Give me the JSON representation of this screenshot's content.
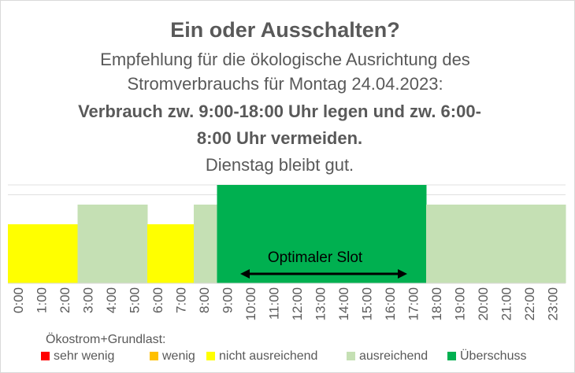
{
  "chart_data": {
    "type": "bar",
    "title": "Ein oder Ausschalten?",
    "subtitle": [
      "Empfehlung für die ökologische Ausrichtung des",
      "Stromverbrauchs für Montag 24.04.2023:"
    ],
    "recommendation": [
      "Verbrauch zw. 9:00-18:00 Uhr legen und zw. 6:00-",
      "8:00 Uhr vermeiden."
    ],
    "note": "Dienstag bleibt gut.",
    "categories": [
      "0:00",
      "1:00",
      "2:00",
      "3:00",
      "4:00",
      "5:00",
      "6:00",
      "7:00",
      "8:00",
      "9:00",
      "10:00",
      "11:00",
      "12:00",
      "13:00",
      "14:00",
      "15:00",
      "16:00",
      "17:00",
      "18:00",
      "19:00",
      "20:00",
      "21:00",
      "22:00",
      "23:00"
    ],
    "values": [
      3,
      3,
      3,
      4,
      4,
      4,
      3,
      3,
      4,
      5,
      5,
      5,
      5,
      5,
      5,
      5,
      5,
      5,
      4,
      4,
      4,
      4,
      4,
      4
    ],
    "ylim": [
      0,
      5
    ],
    "yticks": [
      4.5,
      5
    ],
    "grid": true,
    "annotation": "Optimaler Slot",
    "legend_title": "Ökostrom+Grundlast:",
    "series": [
      {
        "name": "sehr wenig",
        "color": "#ff0000"
      },
      {
        "name": "wenig",
        "color": "#ffc000"
      },
      {
        "name": "nicht ausreichend",
        "color": "#ffff00"
      },
      {
        "name": "ausreichend",
        "color": "#c5e0b4"
      },
      {
        "name": "Überschuss",
        "color": "#00b050"
      }
    ]
  }
}
